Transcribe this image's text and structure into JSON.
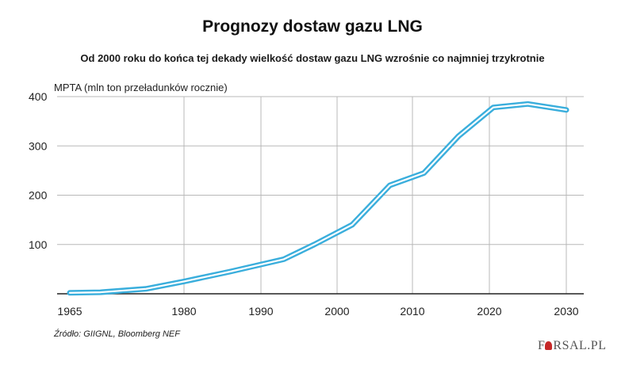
{
  "title": "Prognozy dostaw gazu LNG",
  "subtitle": "Od 2000 roku do końca tej dekady wielkość dostaw gazu LNG wzrośnie co najmniej trzykrotnie",
  "ylabel": "MPTA (mln ton przeładunków rocznie)",
  "source": "Źródło: GIIGNL, Bloomberg NEF",
  "logo": {
    "prefix": "F",
    "rest": "RSAL.PL"
  },
  "colors": {
    "line": "#3aaedc",
    "grid": "#b8b8b8",
    "axis": "#222222"
  },
  "chart_data": {
    "type": "line",
    "title": "Prognozy dostaw gazu LNG",
    "subtitle": "Od 2000 roku do końca tej dekady wielkość dostaw gazu LNG wzrośnie co najmniej trzykrotnie",
    "xlabel": "",
    "ylabel": "MPTA (mln ton przeładunków rocznie)",
    "xlim": [
      1965,
      2030
    ],
    "ylim": [
      0,
      400
    ],
    "xticks": [
      1965,
      1980,
      1990,
      2000,
      2010,
      2020,
      2030
    ],
    "yticks": [
      100,
      200,
      300,
      400
    ],
    "grid": true,
    "legend": "none",
    "series": [
      {
        "x": [
          1965,
          1969,
          1975,
          1980,
          1986,
          1993,
          1997,
          2002,
          2007,
          2011.5,
          2016,
          2020.5,
          2025,
          2030
        ],
        "values": [
          2,
          3,
          10,
          25,
          45,
          70,
          100,
          140,
          220,
          245,
          320,
          378,
          385,
          373
        ]
      }
    ]
  }
}
